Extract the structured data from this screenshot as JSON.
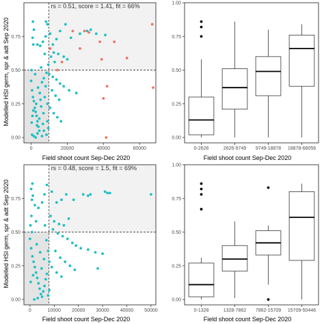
{
  "colors": {
    "teal": "#1fbfc3",
    "salmon": "#f0735f",
    "quadrant_fill": "#e4e4e4",
    "quadrant_fill_light": "#f2f2f2",
    "box_stroke": "#333333"
  },
  "chart_data": [
    {
      "type": "scatter",
      "panel": "top-left",
      "annotation": "rs = 0.51, score = 1.41, fit = 66%",
      "xlabel": "Field shoot count Sep-Dec 2020",
      "ylabel": "Modelled HSI germ, spr & adt Sep 2020",
      "xlim": [
        -4000,
        69000
      ],
      "ylim": [
        -0.04,
        1.0
      ],
      "x_ticks": [
        0,
        20000,
        40000,
        60000
      ],
      "x_tick_labels": [
        "0",
        "20000",
        "40000",
        "60000"
      ],
      "y_ticks": [
        0.0,
        0.25,
        0.5,
        0.75
      ],
      "y_tick_labels": [
        "0.00",
        "0.25",
        "0.50",
        "0.75"
      ],
      "vline": 9749,
      "hline": 0.5,
      "series": [
        {
          "color": "teal",
          "points": [
            [
              1000,
              0.86
            ],
            [
              1500,
              0.8
            ],
            [
              800,
              0.74
            ],
            [
              1200,
              0.69
            ],
            [
              3500,
              0.69
            ],
            [
              5000,
              0.68
            ],
            [
              6500,
              0.71
            ],
            [
              8000,
              0.75
            ],
            [
              8200,
              0.86
            ],
            [
              9000,
              0.84
            ],
            [
              10500,
              0.77
            ],
            [
              12000,
              0.69
            ],
            [
              14000,
              0.73
            ],
            [
              16000,
              0.79
            ],
            [
              19000,
              0.84
            ],
            [
              22000,
              0.74
            ],
            [
              27000,
              0.77
            ],
            [
              31000,
              0.79
            ],
            [
              33000,
              0.8
            ],
            [
              36000,
              0.77
            ],
            [
              41000,
              0.76
            ],
            [
              12500,
              0.63
            ],
            [
              11000,
              0.6
            ],
            [
              13000,
              0.56
            ],
            [
              15000,
              0.62
            ],
            [
              18000,
              0.6
            ],
            [
              20000,
              0.58
            ],
            [
              7500,
              0.62
            ],
            [
              9500,
              0.54
            ],
            [
              5500,
              0.52
            ],
            [
              8500,
              0.48
            ],
            [
              10000,
              0.47
            ],
            [
              12000,
              0.45
            ],
            [
              14000,
              0.43
            ],
            [
              16000,
              0.4
            ],
            [
              18000,
              0.38
            ],
            [
              21000,
              0.35
            ],
            [
              25000,
              0.33
            ],
            [
              7000,
              0.44
            ],
            [
              6000,
              0.41
            ],
            [
              11500,
              0.35
            ],
            [
              13500,
              0.31
            ],
            [
              15500,
              0.28
            ],
            [
              9000,
              0.25
            ],
            [
              10500,
              0.22
            ],
            [
              12500,
              0.18
            ],
            [
              14500,
              0.15
            ],
            [
              16500,
              0.12
            ],
            [
              7500,
              0.3
            ],
            [
              8000,
              0.38
            ],
            [
              0,
              0.42
            ],
            [
              500,
              0.35
            ],
            [
              1000,
              0.3
            ],
            [
              1500,
              0.27
            ],
            [
              2000,
              0.22
            ],
            [
              2500,
              0.19
            ],
            [
              3000,
              0.16
            ],
            [
              3500,
              0.12
            ],
            [
              4000,
              0.08
            ],
            [
              4500,
              0.05
            ],
            [
              500,
              0.02
            ],
            [
              1500,
              0.01
            ],
            [
              2500,
              0.0
            ],
            [
              3500,
              0.03
            ],
            [
              4500,
              0.14
            ],
            [
              5500,
              0.23
            ],
            [
              6500,
              0.1
            ],
            [
              7000,
              0.05
            ],
            [
              8500,
              0.02
            ],
            [
              9500,
              0.07
            ],
            [
              9000,
              0.12
            ],
            [
              200,
              0.5
            ],
            [
              2200,
              0.47
            ],
            [
              3800,
              0.37
            ],
            [
              5200,
              0.28
            ],
            [
              6800,
              0.18
            ],
            [
              2800,
              0.25
            ],
            [
              1200,
              0.2
            ],
            [
              3200,
              0.09
            ],
            [
              4800,
              0.33
            ],
            [
              6000,
              0.01
            ],
            [
              300,
              0.11
            ],
            [
              700,
              0.16
            ]
          ]
        },
        {
          "color": "salmon",
          "points": [
            [
              23000,
              0.79
            ],
            [
              29500,
              0.79
            ],
            [
              32000,
              0.78
            ],
            [
              38000,
              0.71
            ],
            [
              46000,
              0.71
            ],
            [
              67000,
              0.84
            ],
            [
              53000,
              0.59
            ],
            [
              39000,
              0.58
            ],
            [
              42000,
              0.38
            ],
            [
              67500,
              0.37
            ],
            [
              40000,
              0.29
            ],
            [
              41500,
              0.0
            ],
            [
              27000,
              0.66
            ],
            [
              17000,
              0.56
            ],
            [
              14500,
              0.5
            ],
            [
              10500,
              0.66
            ]
          ]
        }
      ]
    },
    {
      "type": "box",
      "panel": "top-right",
      "xlabel": "Field shoot count Sep-Dec 2020",
      "ylim": [
        -0.04,
        1.0
      ],
      "y_ticks": [
        0.0,
        0.25,
        0.5,
        0.75,
        1.0
      ],
      "y_tick_labels": [
        "0.00",
        "0.25",
        "0.50",
        "0.75",
        "1.00"
      ],
      "categories": [
        "0-2626",
        "2626-9749",
        "9749-18878",
        "18878-68056"
      ],
      "boxes": [
        {
          "min": 0.0,
          "q1": 0.02,
          "median": 0.13,
          "q3": 0.3,
          "max": 0.58,
          "outliers": [
            0.86,
            0.82,
            0.75
          ]
        },
        {
          "min": 0.0,
          "q1": 0.21,
          "median": 0.37,
          "q3": 0.51,
          "max": 0.86,
          "outliers": []
        },
        {
          "min": 0.0,
          "q1": 0.31,
          "median": 0.49,
          "q3": 0.6,
          "max": 0.8,
          "outliers": []
        },
        {
          "min": 0.0,
          "q1": 0.38,
          "median": 0.66,
          "q3": 0.76,
          "max": 0.84,
          "outliers": []
        }
      ]
    },
    {
      "type": "scatter",
      "panel": "bottom-left",
      "annotation": "rs = 0.48, score = 1.5, fit = 69%",
      "xlabel": "Field shoot count Sep-Dec 2020",
      "ylabel": "Modelled HSI germ, spr & adt Sep 2020",
      "xlim": [
        -2500,
        52000
      ],
      "ylim": [
        -0.04,
        1.0
      ],
      "x_ticks": [
        0,
        10000,
        20000,
        30000,
        40000,
        50000
      ],
      "x_tick_labels": [
        "0",
        "10000",
        "20000",
        "30000",
        "40000",
        "50000"
      ],
      "y_ticks": [
        0.0,
        0.25,
        0.5,
        0.75
      ],
      "y_tick_labels": [
        "0.00",
        "0.25",
        "0.50",
        "0.75"
      ],
      "vline": 7862,
      "hline": 0.5,
      "series": [
        {
          "color": "teal",
          "points": [
            [
              1000,
              0.86
            ],
            [
              500,
              0.82
            ],
            [
              1200,
              0.77
            ],
            [
              800,
              0.74
            ],
            [
              2000,
              0.7
            ],
            [
              3500,
              0.68
            ],
            [
              5000,
              0.72
            ],
            [
              6000,
              0.78
            ],
            [
              7000,
              0.85
            ],
            [
              9000,
              0.8
            ],
            [
              11000,
              0.72
            ],
            [
              13000,
              0.74
            ],
            [
              15000,
              0.78
            ],
            [
              18000,
              0.74
            ],
            [
              22000,
              0.78
            ],
            [
              24000,
              0.77
            ],
            [
              25000,
              0.78
            ],
            [
              31000,
              0.8
            ],
            [
              32000,
              0.79
            ],
            [
              33000,
              0.79
            ],
            [
              50000,
              0.78
            ],
            [
              8500,
              0.62
            ],
            [
              10000,
              0.58
            ],
            [
              12000,
              0.56
            ],
            [
              14000,
              0.55
            ],
            [
              16000,
              0.6
            ],
            [
              9500,
              0.52
            ],
            [
              11500,
              0.49
            ],
            [
              13500,
              0.47
            ],
            [
              15500,
              0.45
            ],
            [
              17500,
              0.42
            ],
            [
              19000,
              0.4
            ],
            [
              21000,
              0.38
            ],
            [
              24000,
              0.37
            ],
            [
              27000,
              0.35
            ],
            [
              30000,
              0.34
            ],
            [
              10500,
              0.36
            ],
            [
              12500,
              0.31
            ],
            [
              14500,
              0.28
            ],
            [
              16500,
              0.25
            ],
            [
              18500,
              0.22
            ],
            [
              8000,
              0.28
            ],
            [
              9000,
              0.24
            ],
            [
              11000,
              0.2
            ],
            [
              13000,
              0.17
            ],
            [
              28000,
              0.23
            ],
            [
              0,
              0.45
            ],
            [
              500,
              0.38
            ],
            [
              1000,
              0.32
            ],
            [
              1500,
              0.28
            ],
            [
              2000,
              0.24
            ],
            [
              2500,
              0.2
            ],
            [
              3000,
              0.16
            ],
            [
              3500,
              0.12
            ],
            [
              4000,
              0.08
            ],
            [
              4500,
              0.04
            ],
            [
              5000,
              0.02
            ],
            [
              5500,
              0.06
            ],
            [
              6000,
              0.1
            ],
            [
              6500,
              0.15
            ],
            [
              7000,
              0.19
            ],
            [
              7500,
              0.03
            ],
            [
              8000,
              0.07
            ],
            [
              200,
              0.55
            ],
            [
              800,
              0.5
            ],
            [
              2800,
              0.41
            ],
            [
              4200,
              0.35
            ],
            [
              5800,
              0.3
            ],
            [
              1800,
              0.0
            ],
            [
              3200,
              0.01
            ],
            [
              6800,
              0.44
            ],
            [
              7500,
              0.36
            ],
            [
              300,
              0.13
            ],
            [
              1300,
              0.18
            ],
            [
              4800,
              0.23
            ],
            [
              600,
              0.62
            ],
            [
              2500,
              0.58
            ],
            [
              6200,
              0.55
            ]
          ]
        }
      ]
    },
    {
      "type": "box",
      "panel": "bottom-right",
      "xlabel": "Field shoot count Sep-Dec 2020",
      "ylim": [
        -0.04,
        1.0
      ],
      "y_ticks": [
        0.0,
        0.25,
        0.5,
        0.75,
        1.0
      ],
      "y_tick_labels": [
        "0.00",
        "0.25",
        "0.50",
        "0.75",
        "1.00"
      ],
      "categories": [
        "0-1328",
        "1328-7862",
        "7862-15709",
        "15709-50446"
      ],
      "boxes": [
        {
          "min": 0.0,
          "q1": 0.02,
          "median": 0.11,
          "q3": 0.27,
          "max": 0.31,
          "outliers": [
            0.86,
            0.82,
            0.78,
            0.67
          ]
        },
        {
          "min": 0.01,
          "q1": 0.21,
          "median": 0.3,
          "q3": 0.4,
          "max": 0.58,
          "outliers": []
        },
        {
          "min": 0.11,
          "q1": 0.33,
          "median": 0.42,
          "q3": 0.51,
          "max": 0.55,
          "outliers": [
            0.83,
            0.0
          ]
        },
        {
          "min": 0.0,
          "q1": 0.29,
          "median": 0.61,
          "q3": 0.8,
          "max": 0.86,
          "outliers": []
        }
      ]
    }
  ]
}
